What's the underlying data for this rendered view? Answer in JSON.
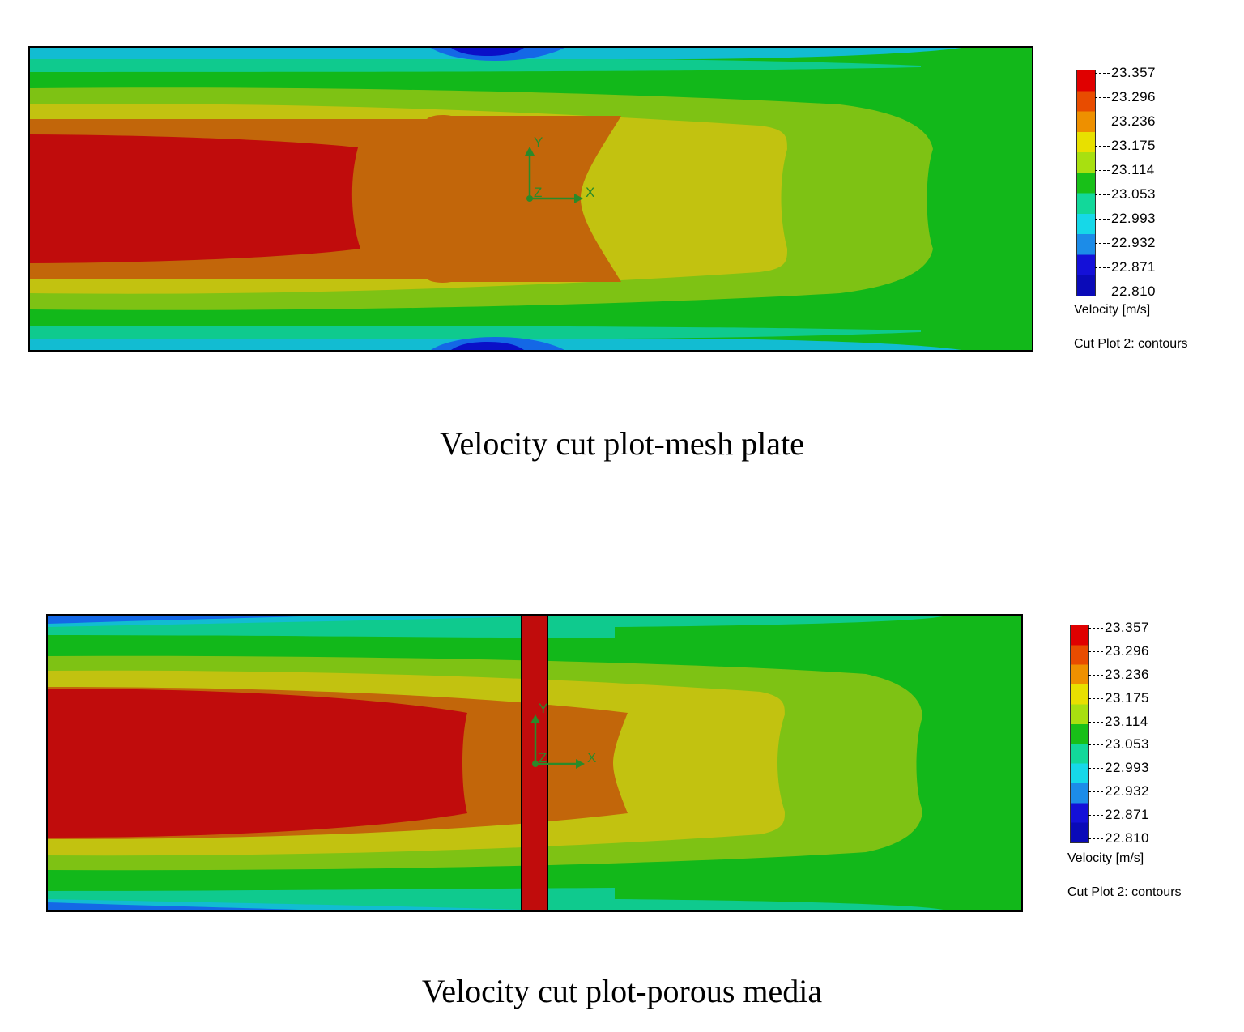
{
  "colors": {
    "band_0": "#0a10c8",
    "band_1": "#1468e6",
    "band_2": "#12bcd2",
    "band_3": "#0fca8e",
    "band_4": "#12b81a",
    "band_5": "#7ec214",
    "band_6": "#c2c210",
    "band_7": "#c2660a",
    "band_8": "#c00c0c",
    "legend_stops": [
      "#e00000",
      "#e84c00",
      "#ee9000",
      "#e8e000",
      "#a8e010",
      "#18c018",
      "#12d89a",
      "#16d8e8",
      "#1c8ce8",
      "#1410d8",
      "#0a0ab8"
    ],
    "axis_green": "#2a8a2a",
    "porous_strip": "#c00c0c"
  },
  "chart_data": [
    {
      "type": "heatmap",
      "title": "Velocity cut plot-mesh plate",
      "legend_ticks": [
        "23.357",
        "23.296",
        "23.236",
        "23.175",
        "23.114",
        "23.053",
        "22.993",
        "22.932",
        "22.871",
        "22.810"
      ],
      "colorbar_range": [
        22.81,
        23.357
      ],
      "colorbar_label": "Velocity [m/s]",
      "plot_label": "Cut Plot 2: contours",
      "axis_triad": [
        "Y",
        "X",
        "Z"
      ]
    },
    {
      "type": "heatmap",
      "title": "Velocity cut plot-porous media",
      "legend_ticks": [
        "23.357",
        "23.296",
        "23.236",
        "23.175",
        "23.114",
        "23.053",
        "22.993",
        "22.932",
        "22.871",
        "22.810"
      ],
      "colorbar_range": [
        22.81,
        23.357
      ],
      "colorbar_label": "Velocity [m/s]",
      "plot_label": "Cut Plot 2: contours",
      "axis_triad": [
        "Y",
        "X",
        "Z"
      ]
    }
  ]
}
